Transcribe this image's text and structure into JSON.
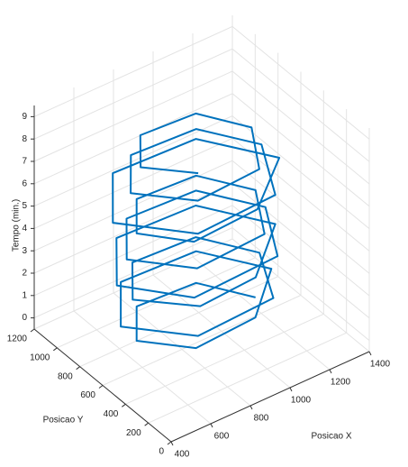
{
  "chart_data": {
    "type": "line3d",
    "xlabel": "Posicao X",
    "ylabel": "Posicao Y",
    "zlabel": "Tempo (min.)",
    "xlim": [
      400,
      1400
    ],
    "ylim": [
      0,
      1200
    ],
    "zlim": [
      -0.5,
      9.5
    ],
    "xticks": [
      400,
      600,
      800,
      1000,
      1200,
      1400
    ],
    "yticks": [
      0,
      200,
      400,
      600,
      800,
      1000,
      1200
    ],
    "zticks": [
      0,
      1,
      2,
      3,
      4,
      5,
      6,
      7,
      8,
      9
    ],
    "grid": true,
    "color": "#0072bd",
    "x": [
      1200,
      1050,
      750,
      600,
      750,
      1050,
      1280,
      1090,
      710,
      520,
      720,
      1100,
      1220,
      1060,
      740,
      580,
      760,
      1040,
      1300,
      1100,
      700,
      500,
      690,
      1110,
      1250,
      1075,
      725,
      550,
      730,
      1070,
      1200,
      1050,
      750,
      600,
      740,
      1060,
      1320,
      1110,
      690,
      480,
      700,
      1090,
      1230,
      1065,
      735,
      570,
      745,
      1055,
      1180,
      1040,
      760,
      620,
      770
    ],
    "y": [
      650,
      910,
      910,
      650,
      390,
      390,
      650,
      980,
      980,
      650,
      320,
      320,
      650,
      930,
      930,
      650,
      370,
      370,
      650,
      1000,
      1000,
      650,
      300,
      300,
      650,
      955,
      955,
      650,
      345,
      345,
      650,
      910,
      910,
      650,
      390,
      390,
      650,
      1015,
      1015,
      650,
      285,
      285,
      650,
      935,
      935,
      650,
      365,
      365,
      650,
      895,
      895,
      650,
      405
    ],
    "z": [
      0,
      0.16,
      0.32,
      0.48,
      0.64,
      0.8,
      0.96,
      1.12,
      1.28,
      1.44,
      1.6,
      1.76,
      1.92,
      2.08,
      2.24,
      2.4,
      2.56,
      2.72,
      2.88,
      3.04,
      3.2,
      3.36,
      3.52,
      3.68,
      3.84,
      4,
      4.16,
      4.32,
      4.48,
      4.64,
      4.8,
      4.96,
      5.12,
      5.28,
      5.44,
      5.6,
      5.76,
      5.92,
      6.08,
      6.24,
      6.4,
      6.56,
      6.72,
      6.88,
      7.04,
      7.2,
      7.36,
      7.52,
      7.68,
      7.84,
      8,
      8.16,
      8.32
    ]
  }
}
